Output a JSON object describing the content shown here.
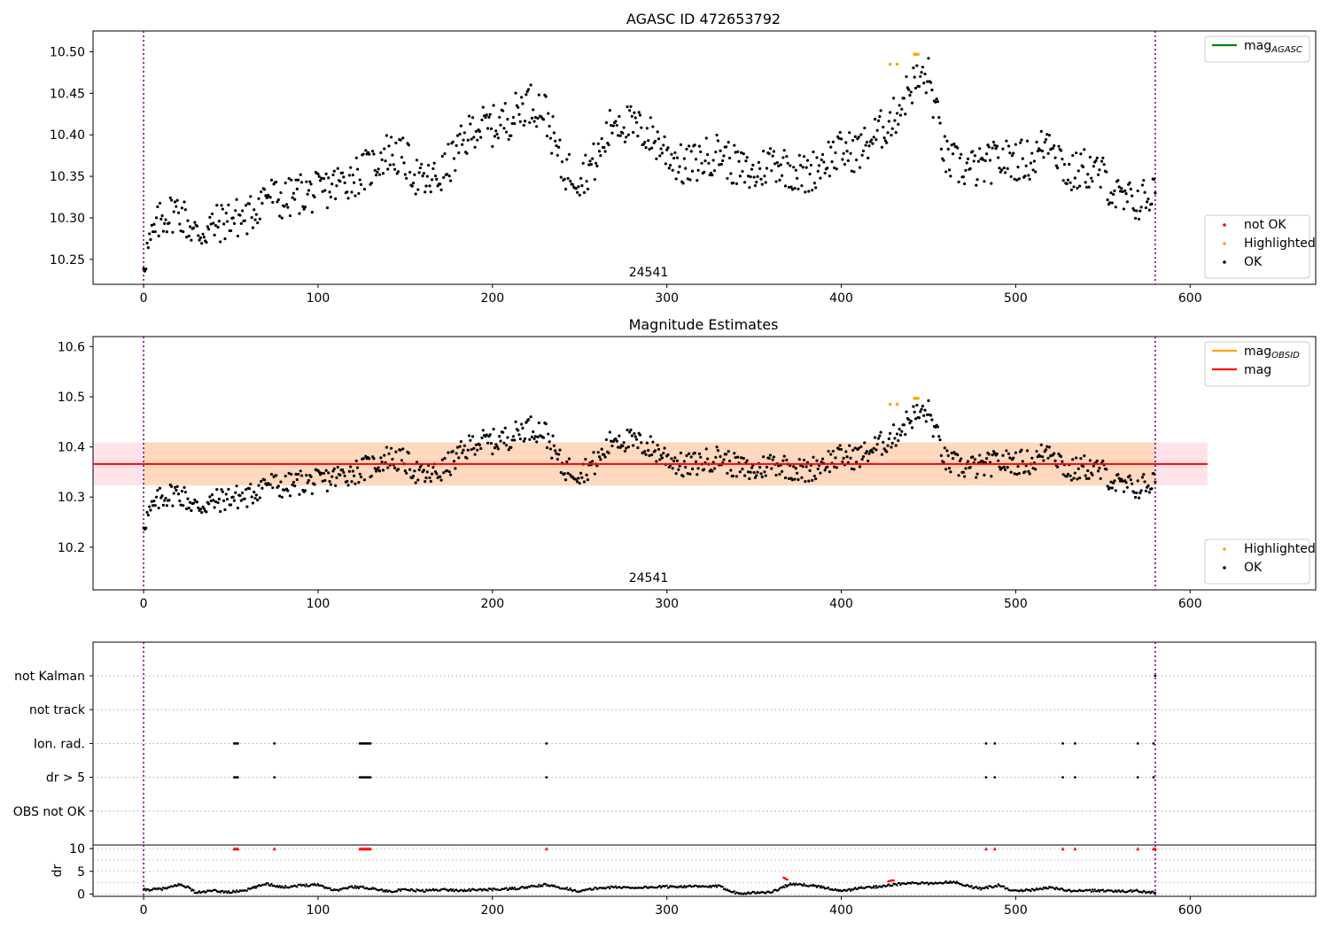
{
  "chart_data": [
    {
      "type": "scatter",
      "title": "AGASC ID 472653792",
      "xlabel": "",
      "ylabel": "",
      "xlim": [
        -29,
        672
      ],
      "ylim": [
        10.22,
        10.525
      ],
      "xticks": [
        0,
        100,
        200,
        300,
        400,
        500,
        600
      ],
      "yticks": [
        10.25,
        10.3,
        10.35,
        10.4,
        10.45,
        10.5
      ],
      "ytick_labels": [
        "10.25",
        "10.30",
        "10.35",
        "10.40",
        "10.45",
        "10.50"
      ],
      "vlines": [
        0,
        580
      ],
      "obsid_label": "24541",
      "obsid_label_x": 290,
      "legends": [
        {
          "position": "top-right",
          "items": [
            {
              "label": "mag",
              "sub": "AGASC",
              "kind": "line",
              "color": "#008000"
            }
          ]
        },
        {
          "position": "bottom-right",
          "items": [
            {
              "label": "not OK",
              "kind": "dot",
              "color": "#ff0000"
            },
            {
              "label": "Highlighted",
              "kind": "dot",
              "color": "#ffa500"
            },
            {
              "label": "OK",
              "kind": "dot",
              "color": "#000000"
            }
          ]
        }
      ],
      "series": [
        {
          "name": "OK",
          "color": "#000000",
          "style": "dots",
          "x": [
            0,
            10,
            20,
            30,
            40,
            50,
            60,
            70,
            80,
            90,
            100,
            110,
            120,
            130,
            140,
            150,
            160,
            170,
            180,
            190,
            200,
            210,
            220,
            230,
            240,
            250,
            260,
            270,
            280,
            290,
            300,
            310,
            320,
            330,
            340,
            350,
            360,
            370,
            380,
            390,
            400,
            410,
            420,
            430,
            440,
            450,
            460,
            470,
            480,
            490,
            500,
            510,
            520,
            530,
            540,
            550,
            560,
            570,
            580
          ],
          "y": [
            10.25,
            10.3,
            10.31,
            10.28,
            10.29,
            10.3,
            10.3,
            10.33,
            10.32,
            10.33,
            10.33,
            10.34,
            10.35,
            10.36,
            10.38,
            10.37,
            10.34,
            10.35,
            10.38,
            10.41,
            10.41,
            10.42,
            10.44,
            10.43,
            10.36,
            10.35,
            10.37,
            10.42,
            10.41,
            10.4,
            10.38,
            10.36,
            10.37,
            10.38,
            10.36,
            10.35,
            10.37,
            10.36,
            10.35,
            10.37,
            10.38,
            10.38,
            10.4,
            10.42,
            10.46,
            10.47,
            10.37,
            10.36,
            10.36,
            10.37,
            10.37,
            10.37,
            10.4,
            10.35,
            10.36,
            10.35,
            10.32,
            10.32,
            10.33
          ],
          "spread": 0.025
        },
        {
          "name": "Highlighted",
          "color": "#ffa500",
          "style": "dots",
          "x": [
            428,
            432,
            442,
            443,
            444
          ],
          "y": [
            10.485,
            10.485,
            10.497,
            10.497,
            10.497
          ]
        }
      ]
    },
    {
      "type": "scatter",
      "title": "Magnitude Estimates",
      "xlabel": "",
      "ylabel": "",
      "xlim": [
        -29,
        672
      ],
      "ylim": [
        10.115,
        10.62
      ],
      "xticks": [
        0,
        100,
        200,
        300,
        400,
        500,
        600
      ],
      "yticks": [
        10.2,
        10.3,
        10.4,
        10.5,
        10.6
      ],
      "ytick_labels": [
        "10.2",
        "10.3",
        "10.4",
        "10.5",
        "10.6"
      ],
      "vlines": [
        0,
        580
      ],
      "obsid_label": "24541",
      "obsid_label_x": 290,
      "mag_line": {
        "y": 10.366,
        "x_range": [
          -29,
          610
        ],
        "color": "#ff0000"
      },
      "mag_band": {
        "y_range": [
          10.323,
          10.409
        ],
        "x_range": [
          -29,
          610
        ],
        "color": "#ffc0cb"
      },
      "obsid_band": {
        "y_range": [
          10.323,
          10.409
        ],
        "x_range": [
          0,
          580
        ],
        "color": "#ffa500"
      },
      "legends": [
        {
          "position": "top-right",
          "items": [
            {
              "label": "mag",
              "sub": "OBSID",
              "kind": "line",
              "color": "#ffa500"
            },
            {
              "label": "mag",
              "kind": "line",
              "color": "#ff0000"
            }
          ]
        },
        {
          "position": "bottom-right",
          "items": [
            {
              "label": "Highlighted",
              "kind": "dot",
              "color": "#ffa500"
            },
            {
              "label": "OK",
              "kind": "dot",
              "color": "#000000"
            }
          ]
        }
      ],
      "series": [
        {
          "name": "OK",
          "color": "#000000",
          "style": "dots",
          "same_as_panel": 0
        },
        {
          "name": "Highlighted",
          "color": "#ffa500",
          "style": "dots",
          "x": [
            428,
            432,
            442,
            443,
            444
          ],
          "y": [
            10.485,
            10.485,
            10.497,
            10.497,
            10.497
          ]
        }
      ]
    },
    {
      "type": "scatter",
      "title": "",
      "xlim": [
        -29,
        672
      ],
      "xticks": [
        0,
        100,
        200,
        300,
        400,
        500,
        600
      ],
      "vlines": [
        0,
        580
      ],
      "flag_rows": [
        "not Kalman",
        "not track",
        "Ion. rad.",
        "dr > 5",
        "OBS not OK"
      ],
      "flags": {
        "not Kalman": [
          580
        ],
        "not track": [],
        "Ion. rad.": [
          52,
          53,
          54,
          75,
          124,
          125,
          126,
          127,
          128,
          129,
          130,
          231,
          483,
          488,
          527,
          534,
          570,
          579
        ],
        "dr > 5": [
          52,
          53,
          54,
          75,
          124,
          125,
          126,
          127,
          128,
          129,
          130,
          231,
          483,
          488,
          527,
          534,
          570,
          579
        ],
        "OBS not OK": []
      }
    },
    {
      "type": "scatter",
      "title": "",
      "xlabel": "",
      "ylabel": "dr",
      "xlim": [
        -29,
        672
      ],
      "ylim": [
        -0.5,
        10.8
      ],
      "xticks": [
        0,
        100,
        200,
        300,
        400,
        500,
        600
      ],
      "yticks": [
        0,
        5,
        10
      ],
      "ytick_labels": [
        "0",
        "5",
        "10"
      ],
      "vlines": [
        0,
        580
      ],
      "series": [
        {
          "name": "dr",
          "color": "#000000",
          "style": "dots",
          "x": [
            0,
            10,
            15,
            20,
            25,
            30,
            40,
            50,
            60,
            65,
            70,
            80,
            90,
            100,
            105,
            110,
            120,
            130,
            140,
            150,
            160,
            170,
            180,
            190,
            200,
            210,
            220,
            230,
            240,
            250,
            260,
            270,
            280,
            290,
            300,
            310,
            320,
            330,
            340,
            350,
            360,
            370,
            380,
            390,
            400,
            410,
            420,
            430,
            440,
            450,
            460,
            465,
            470,
            480,
            490,
            500,
            510,
            520,
            530,
            540,
            550,
            560,
            570,
            580
          ],
          "y": [
            0.9,
            1.1,
            1.4,
            2.1,
            1.6,
            0.3,
            0.7,
            0.4,
            1.0,
            1.6,
            2.3,
            1.5,
            1.9,
            2.1,
            1.4,
            0.8,
            1.6,
            1.3,
            0.6,
            0.9,
            0.7,
            1.0,
            0.8,
            0.9,
            1.0,
            1.1,
            1.5,
            2.0,
            1.4,
            0.6,
            1.3,
            1.5,
            1.4,
            1.5,
            1.6,
            1.7,
            1.6,
            1.7,
            0.2,
            0.3,
            0.4,
            2.1,
            2.0,
            1.5,
            0.6,
            1.3,
            1.6,
            2.1,
            2.4,
            2.3,
            2.6,
            2.7,
            2.0,
            1.2,
            1.9,
            0.6,
            0.9,
            1.5,
            0.7,
            0.7,
            0.8,
            0.6,
            0.7,
            0.3
          ],
          "spread": 0.25
        },
        {
          "name": "dr capped",
          "color": "#ff0000",
          "style": "triangles",
          "x": [
            52,
            53,
            54,
            75,
            124,
            125,
            126,
            127,
            128,
            129,
            130,
            231,
            483,
            488,
            527,
            534,
            570,
            579,
            580
          ],
          "y": [
            10,
            10,
            10,
            10,
            10,
            10,
            10,
            10,
            10,
            10,
            10,
            10,
            10,
            10,
            10,
            10,
            10,
            10,
            10
          ]
        },
        {
          "name": "dr red",
          "color": "#ff0000",
          "style": "dots",
          "x": [
            367,
            368,
            369,
            427,
            428,
            429,
            430
          ],
          "y": [
            3.6,
            3.4,
            3.2,
            2.8,
            2.9,
            3.0,
            3.0
          ]
        }
      ]
    }
  ]
}
